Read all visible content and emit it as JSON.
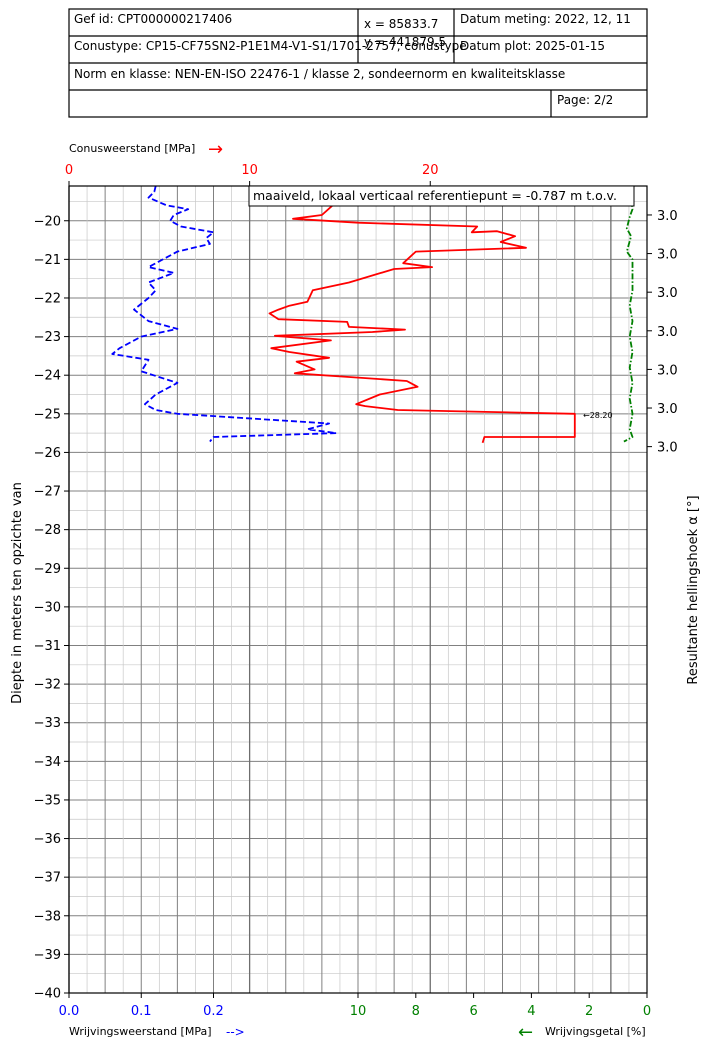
{
  "header": {
    "gef_id": "Gef id: CPT000000217406",
    "x_coord": "x = 85833.7",
    "y_coord": "y = 441879.5",
    "datum_meting": "Datum meting: 2022, 12, 11",
    "conustype": "Conustype: CP15-CF75SN2-P1E1M4-V1-S1/1701-2757, conustype",
    "datum_plot": "Datum plot: 2025-01-15",
    "norm": "Norm en klasse: NEN-EN-ISO 22476-1 / klasse 2, sondeernorm en kwaliteitsklasse",
    "empty_cell": "",
    "page": "Page: 2/2"
  },
  "colors": {
    "cone": "#ff0000",
    "friction": "#0000ff",
    "ratio": "#008000",
    "grid_major": "#808080",
    "grid_minor": "#c8c8c8"
  },
  "chart_data": {
    "type": "line",
    "ylabel": "Diepte in meters ten opzichte van",
    "right_label": "Resultante hellingshoek α [°]",
    "annotation": "maaiveld, lokaal verticaal referentiepunt = -0.787   m t.o.v.",
    "clip_label": "←28.20",
    "ylim": [
      -40,
      -19.1
    ],
    "y_ticks": [
      "−20",
      "−21",
      "−22",
      "−23",
      "−24",
      "−25",
      "−26",
      "−27",
      "−28",
      "−29",
      "−30",
      "−31",
      "−32",
      "−33",
      "−34",
      "−35",
      "−36",
      "−37",
      "−38",
      "−39",
      "−40"
    ],
    "top_axis": {
      "label": "Conusweerstand [MPa]",
      "arrow": "→",
      "range": [
        0,
        32
      ],
      "ticks": [
        "0",
        "10",
        "20"
      ]
    },
    "bottom_left_axis": {
      "label": "Wrijvingsweerstand [MPa]",
      "arrow": "-->",
      "range": [
        0,
        0.8
      ],
      "ticks": [
        "0.0",
        "0.1",
        "0.2"
      ]
    },
    "bottom_right_axis": {
      "label": "Wrijvingsgetal [%]",
      "arrow": "←",
      "range": [
        0,
        20
      ],
      "ticks": [
        "10",
        "8",
        "6",
        "4",
        "2",
        "0"
      ]
    },
    "inclination_labels": [
      "3.0",
      "3.0",
      "3.0",
      "3.0",
      "3.0",
      "3.0",
      "3.0"
    ],
    "inclination_depths": [
      -19.85,
      -20.85,
      -21.85,
      -22.85,
      -23.85,
      -24.85,
      -25.85
    ],
    "series": [
      {
        "name": "Conusweerstand [MPa]",
        "axis": "top",
        "style": "solid",
        "points": [
          [
            13.1,
            -19.55
          ],
          [
            14.6,
            -19.6
          ],
          [
            14.0,
            -19.85
          ],
          [
            12.4,
            -19.95
          ],
          [
            16.0,
            -20.05
          ],
          [
            22.6,
            -20.15
          ],
          [
            22.3,
            -20.3
          ],
          [
            23.7,
            -20.27
          ],
          [
            24.7,
            -20.4
          ],
          [
            23.9,
            -20.55
          ],
          [
            25.3,
            -20.7
          ],
          [
            19.2,
            -20.8
          ],
          [
            18.5,
            -21.1
          ],
          [
            20.1,
            -21.2
          ],
          [
            18.0,
            -21.25
          ],
          [
            15.5,
            -21.6
          ],
          [
            13.5,
            -21.8
          ],
          [
            13.2,
            -22.1
          ],
          [
            12.2,
            -22.2
          ],
          [
            11.6,
            -22.3
          ],
          [
            11.1,
            -22.4
          ],
          [
            11.6,
            -22.55
          ],
          [
            15.4,
            -22.62
          ],
          [
            15.5,
            -22.75
          ],
          [
            18.6,
            -22.82
          ],
          [
            16.8,
            -22.88
          ],
          [
            11.4,
            -22.98
          ],
          [
            14.5,
            -23.1
          ],
          [
            11.2,
            -23.3
          ],
          [
            12.2,
            -23.4
          ],
          [
            14.4,
            -23.55
          ],
          [
            12.6,
            -23.65
          ],
          [
            13.6,
            -23.85
          ],
          [
            12.5,
            -23.95
          ],
          [
            15.6,
            -24.05
          ],
          [
            18.7,
            -24.15
          ],
          [
            19.3,
            -24.3
          ],
          [
            17.2,
            -24.5
          ],
          [
            15.9,
            -24.75
          ],
          [
            16.4,
            -24.8
          ],
          [
            18.2,
            -24.9
          ],
          [
            28.0,
            -25.0
          ],
          [
            28.0,
            -25.6
          ],
          [
            23.0,
            -25.6
          ],
          [
            22.9,
            -25.75
          ]
        ]
      },
      {
        "name": "Wrijvingsweerstand [MPa]",
        "axis": "bottom_left",
        "style": "dashed",
        "points": [
          [
            0.12,
            -19.1
          ],
          [
            0.118,
            -19.25
          ],
          [
            0.11,
            -19.4
          ],
          [
            0.135,
            -19.6
          ],
          [
            0.165,
            -19.7
          ],
          [
            0.145,
            -19.85
          ],
          [
            0.14,
            -20.0
          ],
          [
            0.155,
            -20.15
          ],
          [
            0.2,
            -20.3
          ],
          [
            0.19,
            -20.45
          ],
          [
            0.195,
            -20.6
          ],
          [
            0.15,
            -20.8
          ],
          [
            0.11,
            -21.2
          ],
          [
            0.145,
            -21.35
          ],
          [
            0.11,
            -21.6
          ],
          [
            0.12,
            -21.8
          ],
          [
            0.11,
            -22.0
          ],
          [
            0.09,
            -22.3
          ],
          [
            0.11,
            -22.6
          ],
          [
            0.15,
            -22.8
          ],
          [
            0.1,
            -23.0
          ],
          [
            0.07,
            -23.3
          ],
          [
            0.06,
            -23.45
          ],
          [
            0.11,
            -23.6
          ],
          [
            0.1,
            -23.9
          ],
          [
            0.15,
            -24.2
          ],
          [
            0.12,
            -24.5
          ],
          [
            0.105,
            -24.75
          ],
          [
            0.12,
            -24.9
          ],
          [
            0.15,
            -25.0
          ],
          [
            0.36,
            -25.25
          ],
          [
            0.33,
            -25.4
          ],
          [
            0.37,
            -25.5
          ],
          [
            0.2,
            -25.6
          ],
          [
            0.195,
            -25.72
          ]
        ]
      },
      {
        "name": "Wrijvingsgetal [%]",
        "axis": "bottom_right",
        "style": "dashdot",
        "points": [
          [
            0.6,
            -19.1
          ],
          [
            0.55,
            -19.4
          ],
          [
            0.5,
            -19.7
          ],
          [
            0.6,
            -19.9
          ],
          [
            0.7,
            -20.2
          ],
          [
            0.55,
            -20.4
          ],
          [
            0.7,
            -20.8
          ],
          [
            0.5,
            -21.0
          ],
          [
            0.5,
            -21.4
          ],
          [
            0.5,
            -21.8
          ],
          [
            0.6,
            -22.2
          ],
          [
            0.5,
            -22.6
          ],
          [
            0.6,
            -23.0
          ],
          [
            0.5,
            -23.4
          ],
          [
            0.6,
            -23.8
          ],
          [
            0.5,
            -24.2
          ],
          [
            0.6,
            -24.6
          ],
          [
            0.5,
            -25.0
          ],
          [
            0.6,
            -25.4
          ],
          [
            0.5,
            -25.6
          ],
          [
            0.8,
            -25.72
          ]
        ]
      }
    ]
  }
}
